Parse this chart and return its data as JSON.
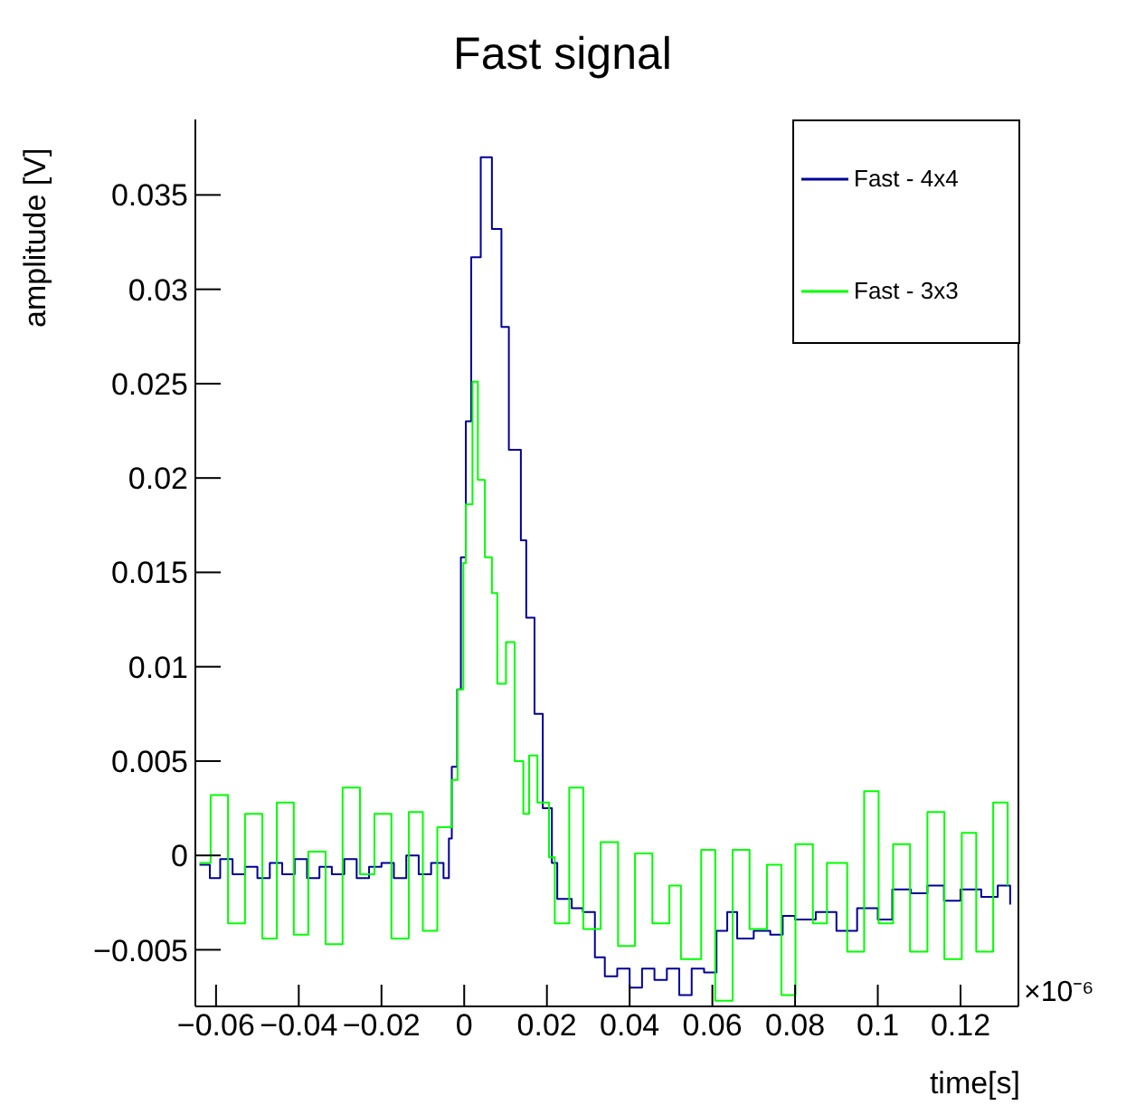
{
  "chart_data": {
    "type": "step",
    "title": "Fast signal",
    "xlabel": "time[s]",
    "ylabel": "amplitude [V]",
    "annotations": [
      "×10⁻⁶"
    ],
    "xlim": [
      -0.065,
      0.134
    ],
    "ylim": [
      -0.008,
      0.039
    ],
    "xticks": [
      {
        "value": -0.06,
        "label": "−0.06"
      },
      {
        "value": -0.04,
        "label": "−0.04"
      },
      {
        "value": -0.02,
        "label": "−0.02"
      },
      0,
      0.02,
      0.04,
      0.06,
      0.08,
      0.1,
      0.12
    ],
    "yticks": [
      {
        "value": -0.005,
        "label": "−0.005"
      },
      0,
      0.005,
      0.01,
      0.015,
      0.02,
      0.025,
      0.03,
      0.035
    ],
    "grid": false,
    "legend": "top right",
    "marker": "none",
    "line_style": "solid",
    "series": [
      {
        "name": "Fast - 4x4",
        "color": "#000099",
        "x": [
          -0.064,
          -0.0615,
          -0.059,
          -0.056,
          -0.053,
          -0.05,
          -0.047,
          -0.044,
          -0.041,
          -0.038,
          -0.035,
          -0.032,
          -0.029,
          -0.026,
          -0.023,
          -0.02,
          -0.017,
          -0.014,
          -0.011,
          -0.008,
          -0.005,
          -0.0037,
          -0.003,
          -0.0017,
          -0.0008,
          0.0004,
          0.0017,
          0.004,
          0.0067,
          0.009,
          0.0108,
          0.0137,
          0.015,
          0.017,
          0.019,
          0.0212,
          0.0225,
          0.026,
          0.0287,
          0.0316,
          0.034,
          0.037,
          0.04,
          0.043,
          0.046,
          0.049,
          0.052,
          0.055,
          0.058,
          0.061,
          0.0636,
          0.066,
          0.07,
          0.074,
          0.077,
          0.08,
          0.085,
          0.09,
          0.095,
          0.1,
          0.1035,
          0.108,
          0.112,
          0.116,
          0.12,
          0.125,
          0.129,
          0.132
        ],
        "values": [
          -0.0005,
          -0.0012,
          -0.0002,
          -0.001,
          -0.0006,
          -0.0012,
          -0.0004,
          -0.001,
          -0.0002,
          -0.0012,
          -0.0006,
          -0.001,
          -0.0002,
          -0.0012,
          -0.0006,
          -0.0004,
          -0.0012,
          0,
          -0.001,
          -0.0004,
          -0.0012,
          0.0009,
          0.0047,
          0.0088,
          0.0158,
          0.023,
          0.0317,
          0.037,
          0.0332,
          0.028,
          0.0215,
          0.0167,
          0.0126,
          0.0075,
          0.0025,
          -0.0004,
          -0.0023,
          -0.0028,
          -0.003,
          -0.0054,
          -0.0064,
          -0.006,
          -0.007,
          -0.006,
          -0.0066,
          -0.006,
          -0.0074,
          -0.006,
          -0.0062,
          -0.004,
          -0.003,
          -0.0044,
          -0.004,
          -0.0042,
          -0.0032,
          -0.0034,
          -0.003,
          -0.004,
          -0.0028,
          -0.0034,
          -0.0018,
          -0.002,
          -0.0016,
          -0.0024,
          -0.0018,
          -0.0022,
          -0.0016,
          -0.0026
        ]
      },
      {
        "name": "Fast - 3x3",
        "color": "#00ff00",
        "x": [
          -0.064,
          -0.0613,
          -0.0571,
          -0.053,
          -0.0488,
          -0.0453,
          -0.0412,
          -0.0377,
          -0.0335,
          -0.0294,
          -0.0252,
          -0.0217,
          -0.0176,
          -0.0134,
          -0.01,
          -0.0065,
          -0.003,
          -0.0016,
          -0.0002,
          0.0004,
          0.002,
          0.0033,
          0.005,
          0.0067,
          0.008,
          0.0101,
          0.0122,
          0.0143,
          0.0157,
          0.0177,
          0.0205,
          0.0219,
          0.0254,
          0.0288,
          0.033,
          0.0372,
          0.0413,
          0.0455,
          0.0496,
          0.0524,
          0.0573,
          0.0607,
          0.0649,
          0.069,
          0.0732,
          0.0767,
          0.0801,
          0.0843,
          0.0877,
          0.0926,
          0.0967,
          0.1002,
          0.1037,
          0.1078,
          0.112,
          0.1161,
          0.1203,
          0.1238,
          0.1279,
          0.1314
        ],
        "values": [
          -0.0004,
          0.0032,
          -0.0036,
          0.0022,
          -0.0044,
          0.0028,
          -0.0042,
          0.0002,
          -0.0047,
          0.0036,
          -0.001,
          0.0022,
          -0.0044,
          0.0023,
          -0.004,
          0.0015,
          0.004,
          0.0088,
          0.0155,
          0.0186,
          0.0251,
          0.0199,
          0.0158,
          0.0139,
          0.0091,
          0.0113,
          0.005,
          0.0022,
          0.0053,
          0.0028,
          -0.0001,
          -0.0036,
          0.0036,
          -0.0039,
          0.0007,
          -0.0048,
          0.0001,
          -0.0036,
          -0.0016,
          -0.0055,
          0.0003,
          -0.0077,
          0.0003,
          -0.0039,
          -0.0005,
          -0.0074,
          0.0006,
          -0.0036,
          -0.0004,
          -0.0051,
          0.0034,
          -0.0036,
          0.0006,
          -0.0051,
          0.0023,
          -0.0055,
          0.0012,
          -0.0051,
          0.0028,
          -0.0016
        ]
      }
    ]
  }
}
